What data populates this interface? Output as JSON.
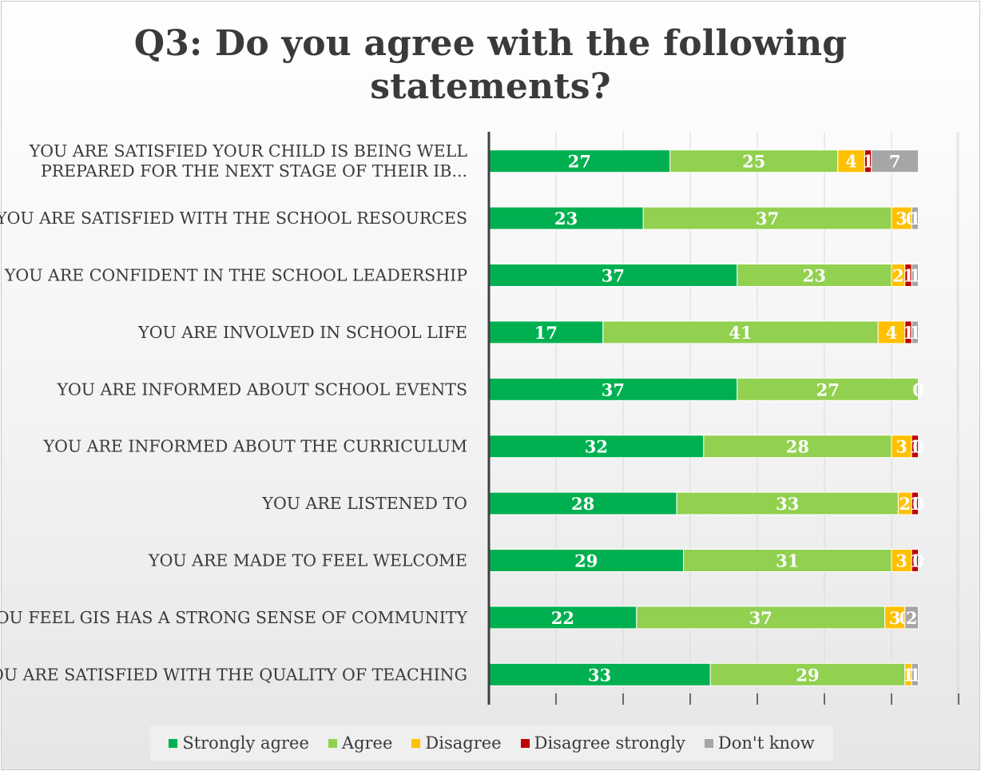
{
  "chart_data": {
    "type": "bar",
    "stacked": true,
    "orientation": "horizontal",
    "title": "Q3: Do you agree with the following statements?",
    "categories": [
      "YOU ARE SATISFIED YOUR CHILD IS BEING WELL PREPARED FOR THE NEXT STAGE OF THEIR IB...",
      "YOU ARE SATISFIED WITH THE SCHOOL RESOURCES",
      "YOU ARE CONFIDENT IN THE SCHOOL LEADERSHIP",
      "YOU ARE INVOLVED IN SCHOOL LIFE",
      "YOU ARE INFORMED ABOUT SCHOOL EVENTS",
      "YOU ARE INFORMED ABOUT THE CURRICULUM",
      "YOU ARE LISTENED TO",
      "YOU ARE MADE TO FEEL WELCOME",
      "YOU FEEL GIS HAS A STRONG SENSE OF COMMUNITY",
      "YOU ARE SATISFIED WITH THE QUALITY OF TEACHING"
    ],
    "category_lines": [
      [
        "YOU ARE SATISFIED YOUR CHILD IS BEING WELL",
        "PREPARED FOR THE NEXT STAGE OF THEIR IB..."
      ],
      [
        "YOU ARE SATISFIED WITH THE SCHOOL RESOURCES"
      ],
      [
        "YOU ARE CONFIDENT IN THE SCHOOL LEADERSHIP"
      ],
      [
        "YOU ARE INVOLVED IN SCHOOL LIFE"
      ],
      [
        "YOU ARE INFORMED ABOUT SCHOOL EVENTS"
      ],
      [
        "YOU ARE INFORMED ABOUT THE CURRICULUM"
      ],
      [
        "YOU ARE LISTENED TO"
      ],
      [
        "YOU ARE MADE TO FEEL WELCOME"
      ],
      [
        "YOU FEEL GIS HAS A STRONG SENSE OF COMMUNITY"
      ],
      [
        "YOU ARE SATISFIED WITH THE QUALITY OF TEACHING"
      ]
    ],
    "series": [
      {
        "name": "Strongly agree",
        "color": "#00b050",
        "values": [
          27,
          23,
          37,
          17,
          37,
          32,
          28,
          29,
          22,
          33
        ]
      },
      {
        "name": "Agree",
        "color": "#92d050",
        "values": [
          25,
          37,
          23,
          41,
          27,
          28,
          33,
          31,
          37,
          29
        ]
      },
      {
        "name": "Disagree",
        "color": "#ffc000",
        "values": [
          4,
          3,
          2,
          4,
          0,
          3,
          2,
          3,
          3,
          1
        ]
      },
      {
        "name": "Disagree strongly",
        "color": "#c00000",
        "values": [
          1,
          0,
          1,
          1,
          0,
          1,
          1,
          1,
          0,
          0
        ]
      },
      {
        "name": "Don't know",
        "color": "#a6a6a6",
        "values": [
          7,
          1,
          1,
          1,
          0,
          0,
          0,
          0,
          2,
          1
        ]
      }
    ],
    "legend_position": "bottom",
    "grid": true
  }
}
